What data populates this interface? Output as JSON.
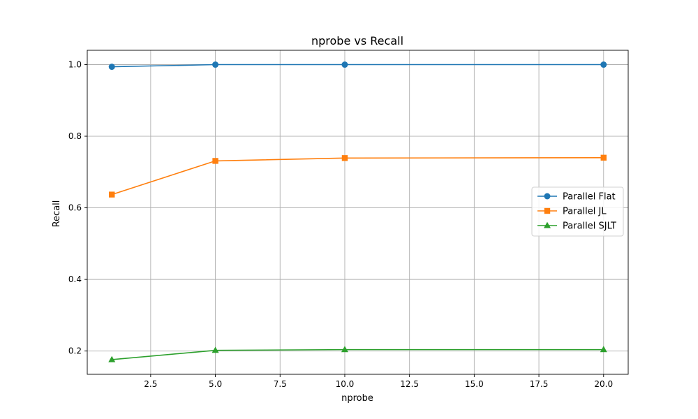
{
  "chart_data": {
    "type": "line",
    "title": "nprobe vs Recall",
    "xlabel": "nprobe",
    "ylabel": "Recall",
    "xlim": [
      0.05,
      20.95
    ],
    "ylim": [
      0.135,
      1.04
    ],
    "x_ticks": [
      2.5,
      5.0,
      7.5,
      10.0,
      12.5,
      15.0,
      17.5,
      20.0
    ],
    "x_tick_labels": [
      "2.5",
      "5.0",
      "7.5",
      "10.0",
      "12.5",
      "15.0",
      "17.5",
      "20.0"
    ],
    "y_ticks": [
      0.2,
      0.4,
      0.6,
      0.8,
      1.0
    ],
    "y_tick_labels": [
      "0.2",
      "0.4",
      "0.6",
      "0.8",
      "1.0"
    ],
    "grid": true,
    "legend_position": "center-right",
    "x": [
      1,
      5,
      10,
      20
    ],
    "series": [
      {
        "name": "Parallel Flat",
        "values": [
          0.994,
          1.0,
          1.0,
          1.0
        ],
        "color": "#1f77b4",
        "marker": "circle"
      },
      {
        "name": "Parallel JL",
        "values": [
          0.637,
          0.731,
          0.739,
          0.74
        ],
        "color": "#ff7f0e",
        "marker": "square"
      },
      {
        "name": "Parallel SJLT",
        "values": [
          0.176,
          0.202,
          0.204,
          0.204
        ],
        "color": "#2ca02c",
        "marker": "triangle"
      }
    ]
  }
}
